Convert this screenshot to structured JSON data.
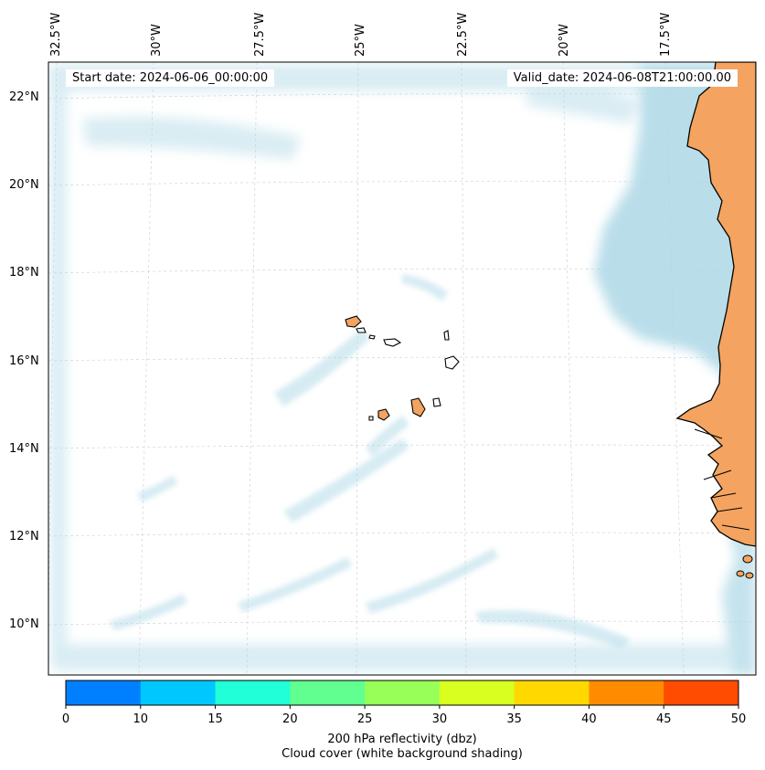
{
  "map": {
    "start_date": "Start date: 2024-06-06_00:00:00",
    "valid_date": "Valid_date: 2024-06-08T21:00:00.00",
    "lon_labels": [
      "32.5°W",
      "30°W",
      "27.5°W",
      "25°W",
      "22.5°W",
      "20°W",
      "17.5°W"
    ],
    "lat_labels": [
      "22°N",
      "20°N",
      "18°N",
      "16°N",
      "14°N",
      "12°N",
      "10°N"
    ],
    "colors": {
      "land": "#f4a460",
      "cloud": "#add8e6",
      "coast": "#000000",
      "grid": "#cccccc"
    }
  },
  "colorbar": {
    "ticks": [
      "0",
      "10",
      "15",
      "20",
      "25",
      "30",
      "35",
      "40",
      "45",
      "50"
    ],
    "colors": [
      "#0080ff",
      "#00c8ff",
      "#20ffd8",
      "#60ff90",
      "#98ff58",
      "#d8ff20",
      "#ffd800",
      "#ff8c00",
      "#ff4c00"
    ],
    "label_line1": "200 hPa reflectivity (dbz)",
    "label_line2": "Cloud cover (white background shading)"
  }
}
